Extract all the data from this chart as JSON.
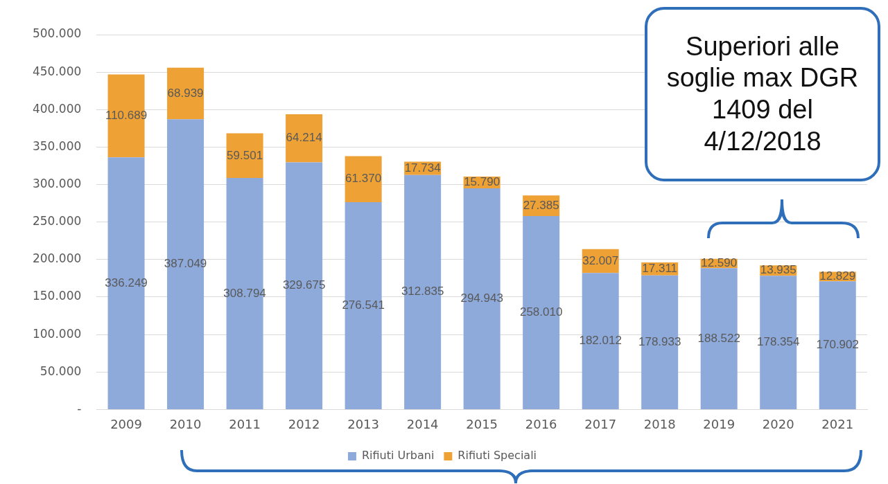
{
  "chart_data": {
    "type": "bar",
    "stacked": true,
    "categories": [
      "2009",
      "2010",
      "2011",
      "2012",
      "2013",
      "2014",
      "2015",
      "2016",
      "2017",
      "2018",
      "2019",
      "2020",
      "2021"
    ],
    "series": [
      {
        "name": "Rifiuti Urbani",
        "color": "#8eaadb",
        "values": [
          336249,
          387049,
          308794,
          329675,
          276541,
          312835,
          294943,
          258010,
          182012,
          178933,
          188522,
          178354,
          170902
        ],
        "value_labels": [
          "336.249",
          "387.049",
          "308.794",
          "329.675",
          "276.541",
          "312.835",
          "294.943",
          "258.010",
          "182.012",
          "178.933",
          "188.522",
          "178.354",
          "170.902"
        ]
      },
      {
        "name": "Rifiuti Speciali",
        "color": "#eea236",
        "values": [
          110689,
          68939,
          59501,
          64214,
          61370,
          17734,
          15790,
          27385,
          32007,
          17311,
          12590,
          13935,
          12829
        ],
        "value_labels": [
          "110.689",
          "68.939",
          "59.501",
          "64.214",
          "61.370",
          "17.734",
          "15.790",
          "27.385",
          "32.007",
          "17.311",
          "12.590",
          "13.935",
          "12.829"
        ]
      }
    ],
    "ylim": [
      0,
      500000
    ],
    "yticks": [
      {
        "value": 0,
        "label": "-"
      },
      {
        "value": 50000,
        "label": "50.000"
      },
      {
        "value": 100000,
        "label": "100.000"
      },
      {
        "value": 150000,
        "label": "150.000"
      },
      {
        "value": 200000,
        "label": "200.000"
      },
      {
        "value": 250000,
        "label": "250.000"
      },
      {
        "value": 300000,
        "label": "300.000"
      },
      {
        "value": 350000,
        "label": "350.000"
      },
      {
        "value": 400000,
        "label": "400.000"
      },
      {
        "value": 450000,
        "label": "450.000"
      },
      {
        "value": 500000,
        "label": "500.000"
      }
    ],
    "grid": "y",
    "legend": "bottom",
    "annotations": [
      "Superiori alle soglie max DGR 1409 del 4/12/2018"
    ]
  }
}
